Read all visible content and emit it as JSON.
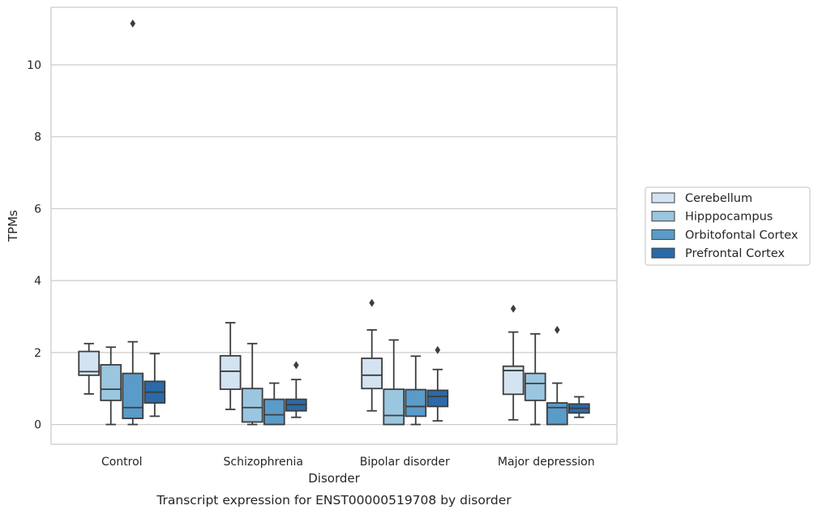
{
  "caption": "Transcript expression for ENST00000519708 by disorder",
  "chart_data": {
    "type": "boxplot",
    "xlabel": "Disorder",
    "ylabel": "TPMs",
    "ylim": [
      -0.55,
      11.6
    ],
    "yticks": [
      0,
      2,
      4,
      6,
      8,
      10
    ],
    "grid": "horizontal",
    "legend_position": "right",
    "categories": [
      "Control",
      "Schizophrenia",
      "Bipolar disorder",
      "Major depression"
    ],
    "series": [
      {
        "name": "Cerebellum",
        "color": "#d3e3f2",
        "boxes": [
          {
            "whislo": 0.85,
            "q1": 1.37,
            "med": 1.47,
            "q3": 2.03,
            "whishi": 2.25,
            "fliers": []
          },
          {
            "whislo": 0.42,
            "q1": 0.98,
            "med": 1.48,
            "q3": 1.91,
            "whishi": 2.83,
            "fliers": []
          },
          {
            "whislo": 0.38,
            "q1": 1.0,
            "med": 1.37,
            "q3": 1.84,
            "whishi": 2.63,
            "fliers": [
              3.38
            ]
          },
          {
            "whislo": 0.13,
            "q1": 0.84,
            "med": 1.5,
            "q3": 1.62,
            "whishi": 2.57,
            "fliers": [
              3.22
            ]
          }
        ]
      },
      {
        "name": "Hipppocampus",
        "color": "#9ac6e0",
        "boxes": [
          {
            "whislo": 0.0,
            "q1": 0.67,
            "med": 0.98,
            "q3": 1.66,
            "whishi": 2.15,
            "fliers": []
          },
          {
            "whislo": 0.0,
            "q1": 0.07,
            "med": 0.47,
            "q3": 1.0,
            "whishi": 2.25,
            "fliers": []
          },
          {
            "whislo": 0.0,
            "q1": 0.0,
            "med": 0.25,
            "q3": 0.98,
            "whishi": 2.35,
            "fliers": []
          },
          {
            "whislo": 0.0,
            "q1": 0.67,
            "med": 1.14,
            "q3": 1.42,
            "whishi": 2.52,
            "fliers": []
          }
        ]
      },
      {
        "name": "Orbitofontal Cortex",
        "color": "#5a9bc9",
        "boxes": [
          {
            "whislo": 0.0,
            "q1": 0.17,
            "med": 0.47,
            "q3": 1.42,
            "whishi": 2.3,
            "fliers": [
              11.15
            ]
          },
          {
            "whislo": 0.0,
            "q1": 0.0,
            "med": 0.27,
            "q3": 0.7,
            "whishi": 1.15,
            "fliers": []
          },
          {
            "whislo": 0.0,
            "q1": 0.23,
            "med": 0.5,
            "q3": 0.97,
            "whishi": 1.9,
            "fliers": []
          },
          {
            "whislo": 0.0,
            "q1": 0.0,
            "med": 0.47,
            "q3": 0.6,
            "whishi": 1.15,
            "fliers": [
              2.63
            ]
          }
        ]
      },
      {
        "name": "Prefrontal Cortex",
        "color": "#2b6aa8",
        "boxes": [
          {
            "whislo": 0.23,
            "q1": 0.6,
            "med": 0.9,
            "q3": 1.2,
            "whishi": 1.97,
            "fliers": []
          },
          {
            "whislo": 0.2,
            "q1": 0.38,
            "med": 0.55,
            "q3": 0.7,
            "whishi": 1.25,
            "fliers": [
              1.65
            ]
          },
          {
            "whislo": 0.1,
            "q1": 0.5,
            "med": 0.78,
            "q3": 0.95,
            "whishi": 1.53,
            "fliers": [
              2.07
            ]
          },
          {
            "whislo": 0.2,
            "q1": 0.32,
            "med": 0.45,
            "q3": 0.57,
            "whishi": 0.77,
            "fliers": []
          }
        ]
      }
    ]
  }
}
